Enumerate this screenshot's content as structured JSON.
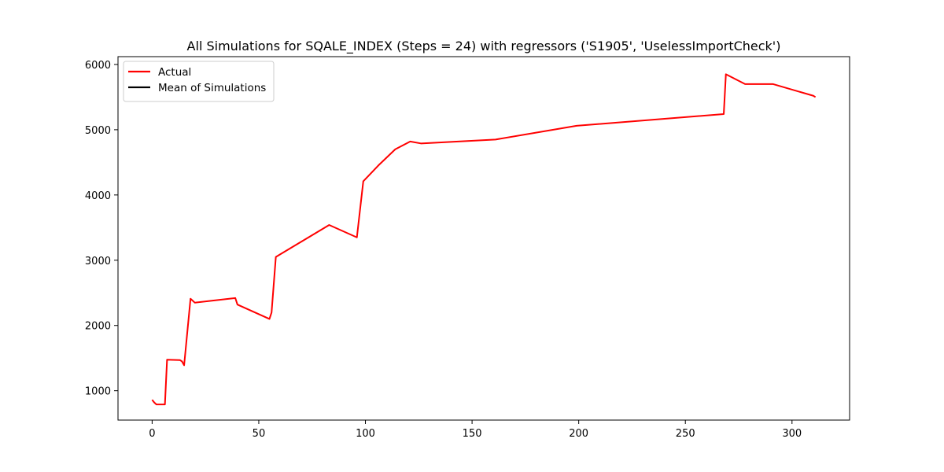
{
  "chart_data": {
    "type": "line",
    "title": "All Simulations for SQALE_INDEX (Steps = 24) with regressors ('S1905', 'UselessImportCheck')",
    "xlabel": "",
    "ylabel": "",
    "xlim": [
      -16,
      327
    ],
    "ylim": [
      550,
      6120
    ],
    "x_ticks": [
      0,
      50,
      100,
      150,
      200,
      250,
      300
    ],
    "y_ticks": [
      1000,
      2000,
      3000,
      4000,
      5000,
      6000
    ],
    "grid": false,
    "legend_position": "upper-left",
    "legend": [
      {
        "label": "Actual",
        "color": "#ff0000"
      },
      {
        "label": "Mean of Simulations",
        "color": "#000000"
      }
    ],
    "series": [
      {
        "name": "Actual",
        "color": "#ff0000",
        "x": [
          0,
          1,
          2,
          6,
          7,
          13,
          14,
          15,
          18,
          20,
          39,
          40,
          55,
          56,
          58,
          83,
          96,
          99,
          106,
          114,
          121,
          126,
          161,
          199,
          268,
          269,
          278,
          291,
          310,
          311
        ],
        "y": [
          860,
          820,
          790,
          790,
          1475,
          1470,
          1450,
          1390,
          2410,
          2350,
          2420,
          2320,
          2100,
          2200,
          3050,
          3540,
          3350,
          4210,
          4450,
          4700,
          4820,
          4790,
          4850,
          5060,
          5240,
          5850,
          5700,
          5700,
          5520,
          5500
        ]
      },
      {
        "name": "Mean of Simulations",
        "color": "#000000",
        "x": [],
        "y": []
      }
    ]
  }
}
